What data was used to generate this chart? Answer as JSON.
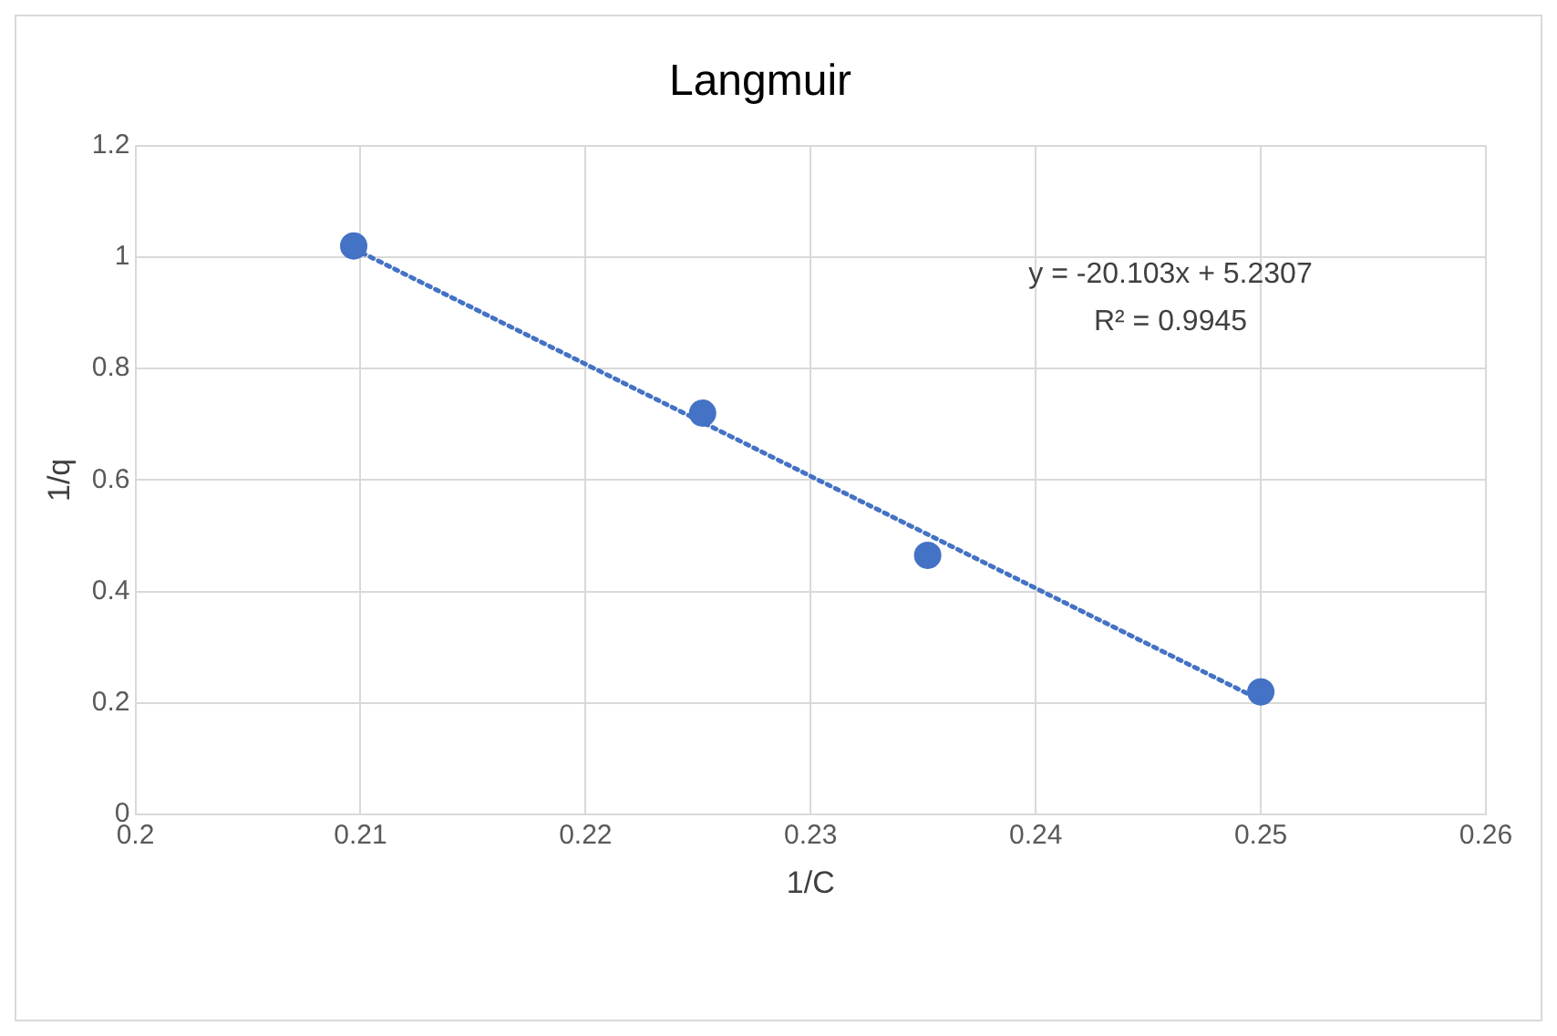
{
  "chart_data": {
    "type": "scatter",
    "title": "Langmuir",
    "xlabel": "1/C",
    "ylabel": "1/q",
    "xlim": [
      0.2,
      0.26
    ],
    "xticks": [
      0.2,
      0.21,
      0.22,
      0.23,
      0.24,
      0.25,
      0.26
    ],
    "ylim": [
      0,
      1.2
    ],
    "yticks": [
      0,
      0.2,
      0.4,
      0.6,
      0.8,
      1,
      1.2
    ],
    "grid": true,
    "legend": false,
    "marker": "circle",
    "series": [
      {
        "color": "#4472c4",
        "x": [
          0.2097,
          0.2252,
          0.2352,
          0.25
        ],
        "values": [
          1.02,
          0.72,
          0.465,
          0.22
        ]
      },
      {
        "type": "line",
        "color": "#4472c4",
        "line_style": "dotted",
        "marker": "none",
        "x": [
          0.2097,
          0.25
        ],
        "values": [
          1.015,
          0.205
        ]
      }
    ],
    "annotations": [
      "y = -20.103x + 5.2307",
      "R² = 0.9945"
    ]
  }
}
